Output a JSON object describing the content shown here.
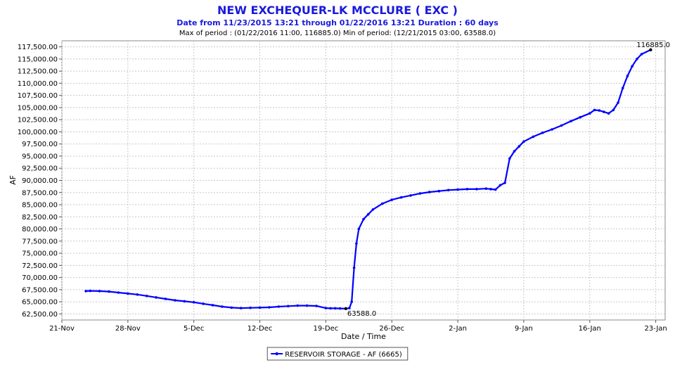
{
  "chart_data": {
    "type": "line",
    "title": "NEW EXCHEQUER-LK MCCLURE ( EXC )",
    "subtitle": "Date from 11/23/2015 13:21 through 01/22/2016 13:21 Duration : 60 days",
    "meta_line": "Max of period : (01/22/2016 11:00, 116885.0)  Min of period: (12/21/2015 03:00,  63588.0)",
    "xlabel": "Date / Time",
    "ylabel": "AF",
    "ylim": [
      61250,
      118750
    ],
    "xlim": [
      "2015-11-21",
      "2016-01-24"
    ],
    "y_ticks": [
      62500,
      65000,
      67500,
      70000,
      72500,
      75000,
      77500,
      80000,
      82500,
      85000,
      87500,
      90000,
      92500,
      95000,
      97500,
      100000,
      102500,
      105000,
      107500,
      110000,
      112500,
      115000,
      117500
    ],
    "y_tick_labels": [
      "62,500.00",
      "65,000.00",
      "67,500.00",
      "70,000.00",
      "72,500.00",
      "75,000.00",
      "77,500.00",
      "80,000.00",
      "82,500.00",
      "85,000.00",
      "87,500.00",
      "90,000.00",
      "92,500.00",
      "95,000.00",
      "97,500.00",
      "100,000.00",
      "102,500.00",
      "105,000.00",
      "107,500.00",
      "110,000.00",
      "112,500.00",
      "115,000.00",
      "117,500.00"
    ],
    "x_ticks": [
      "2015-11-21",
      "2015-11-28",
      "2015-12-05",
      "2015-12-12",
      "2015-12-19",
      "2015-12-26",
      "2016-01-02",
      "2016-01-09",
      "2016-01-16",
      "2016-01-23"
    ],
    "x_tick_labels": [
      "21-Nov",
      "28-Nov",
      "5-Dec",
      "12-Dec",
      "19-Dec",
      "26-Dec",
      "2-Jan",
      "9-Jan",
      "16-Jan",
      "23-Jan"
    ],
    "grid": true,
    "legend_position": "bottom-center",
    "series": [
      {
        "name": "RESERVOIR STORAGE - AF (6665)",
        "color": "#0000ff",
        "x": [
          "2015-11-23 13:00",
          "2015-11-24",
          "2015-11-25",
          "2015-11-26",
          "2015-11-27",
          "2015-11-28",
          "2015-11-29",
          "2015-11-30",
          "2015-12-01",
          "2015-12-02",
          "2015-12-03",
          "2015-12-04",
          "2015-12-05",
          "2015-12-06",
          "2015-12-07",
          "2015-12-08",
          "2015-12-09",
          "2015-12-10",
          "2015-12-11",
          "2015-12-12",
          "2015-12-13",
          "2015-12-14",
          "2015-12-15",
          "2015-12-16",
          "2015-12-17",
          "2015-12-18",
          "2015-12-19",
          "2015-12-19 12:00",
          "2015-12-20",
          "2015-12-20 12:00",
          "2015-12-21 03:00",
          "2015-12-21 12:00",
          "2015-12-21 18:00",
          "2015-12-22",
          "2015-12-22 06:00",
          "2015-12-22 12:00",
          "2015-12-23",
          "2015-12-23 12:00",
          "2015-12-24",
          "2015-12-25",
          "2015-12-26",
          "2015-12-27",
          "2015-12-28",
          "2015-12-29",
          "2015-12-30",
          "2015-12-31",
          "2016-01-01",
          "2016-01-02",
          "2016-01-03",
          "2016-01-04",
          "2016-01-05",
          "2016-01-05 12:00",
          "2016-01-06",
          "2016-01-06 12:00",
          "2016-01-07",
          "2016-01-07 12:00",
          "2016-01-08",
          "2016-01-08 12:00",
          "2016-01-09",
          "2016-01-10",
          "2016-01-11",
          "2016-01-12",
          "2016-01-13",
          "2016-01-14",
          "2016-01-15",
          "2016-01-16",
          "2016-01-16 12:00",
          "2016-01-17",
          "2016-01-17 12:00",
          "2016-01-18",
          "2016-01-18 12:00",
          "2016-01-19",
          "2016-01-19 12:00",
          "2016-01-20",
          "2016-01-20 12:00",
          "2016-01-21",
          "2016-01-21 12:00",
          "2016-01-22 11:00"
        ],
        "values": [
          67200,
          67250,
          67200,
          67100,
          66900,
          66700,
          66500,
          66200,
          65900,
          65600,
          65300,
          65100,
          64900,
          64600,
          64300,
          64000,
          63800,
          63700,
          63750,
          63800,
          63850,
          64000,
          64100,
          64200,
          64200,
          64150,
          63700,
          63650,
          63650,
          63620,
          63588,
          63700,
          65000,
          72000,
          77000,
          80000,
          82000,
          83000,
          84000,
          85200,
          86000,
          86500,
          86900,
          87300,
          87600,
          87800,
          88000,
          88100,
          88200,
          88200,
          88300,
          88200,
          88100,
          89000,
          89500,
          94500,
          96000,
          97000,
          98000,
          99000,
          99800,
          100500,
          101300,
          102200,
          103000,
          103800,
          104500,
          104400,
          104100,
          103800,
          104500,
          106000,
          109000,
          111500,
          113500,
          115000,
          116000,
          116885
        ]
      }
    ],
    "annotations": [
      {
        "label": "116885.0",
        "x": "2016-01-22 11:00",
        "y": 116885
      },
      {
        "label": "63588.0",
        "x": "2015-12-21 03:00",
        "y": 63588
      }
    ]
  }
}
